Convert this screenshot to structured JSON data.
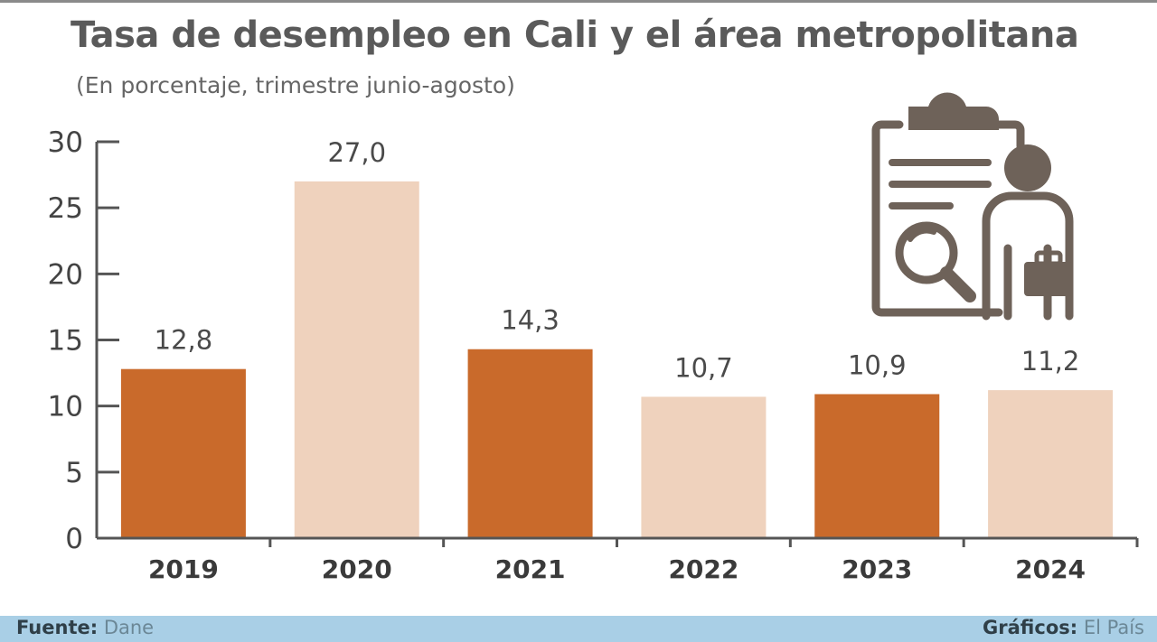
{
  "header": {
    "title": "Tasa de desempleo en Cali y el área metropolitana",
    "subtitle": "(En porcentaje, trimestre junio-agosto)"
  },
  "footer": {
    "source_label": "Fuente:",
    "source_value": "Dane",
    "credit_label": "Gráficos:",
    "credit_value": "El País"
  },
  "icon": {
    "name": "clipboard-job-seeker-icon"
  },
  "colors": {
    "dark_bar": "#c96a2b",
    "light_bar": "#efd2bd",
    "axis": "#555555"
  },
  "chart_data": {
    "type": "bar",
    "title": "Tasa de desempleo en Cali y el área metropolitana",
    "subtitle": "(En porcentaje, trimestre junio-agosto)",
    "categories": [
      "2019",
      "2020",
      "2021",
      "2022",
      "2023",
      "2024"
    ],
    "values": [
      12.8,
      27.0,
      14.3,
      10.7,
      10.9,
      11.2
    ],
    "value_labels": [
      "12,8",
      "27,0",
      "14,3",
      "10,7",
      "10,9",
      "11,2"
    ],
    "yticks": [
      0,
      5,
      10,
      15,
      20,
      25,
      30
    ],
    "ylim": [
      0,
      30
    ],
    "grid": false,
    "legend": "none",
    "bar_colors": [
      "#c96a2b",
      "#efd2bd",
      "#c96a2b",
      "#efd2bd",
      "#c96a2b",
      "#efd2bd"
    ]
  }
}
